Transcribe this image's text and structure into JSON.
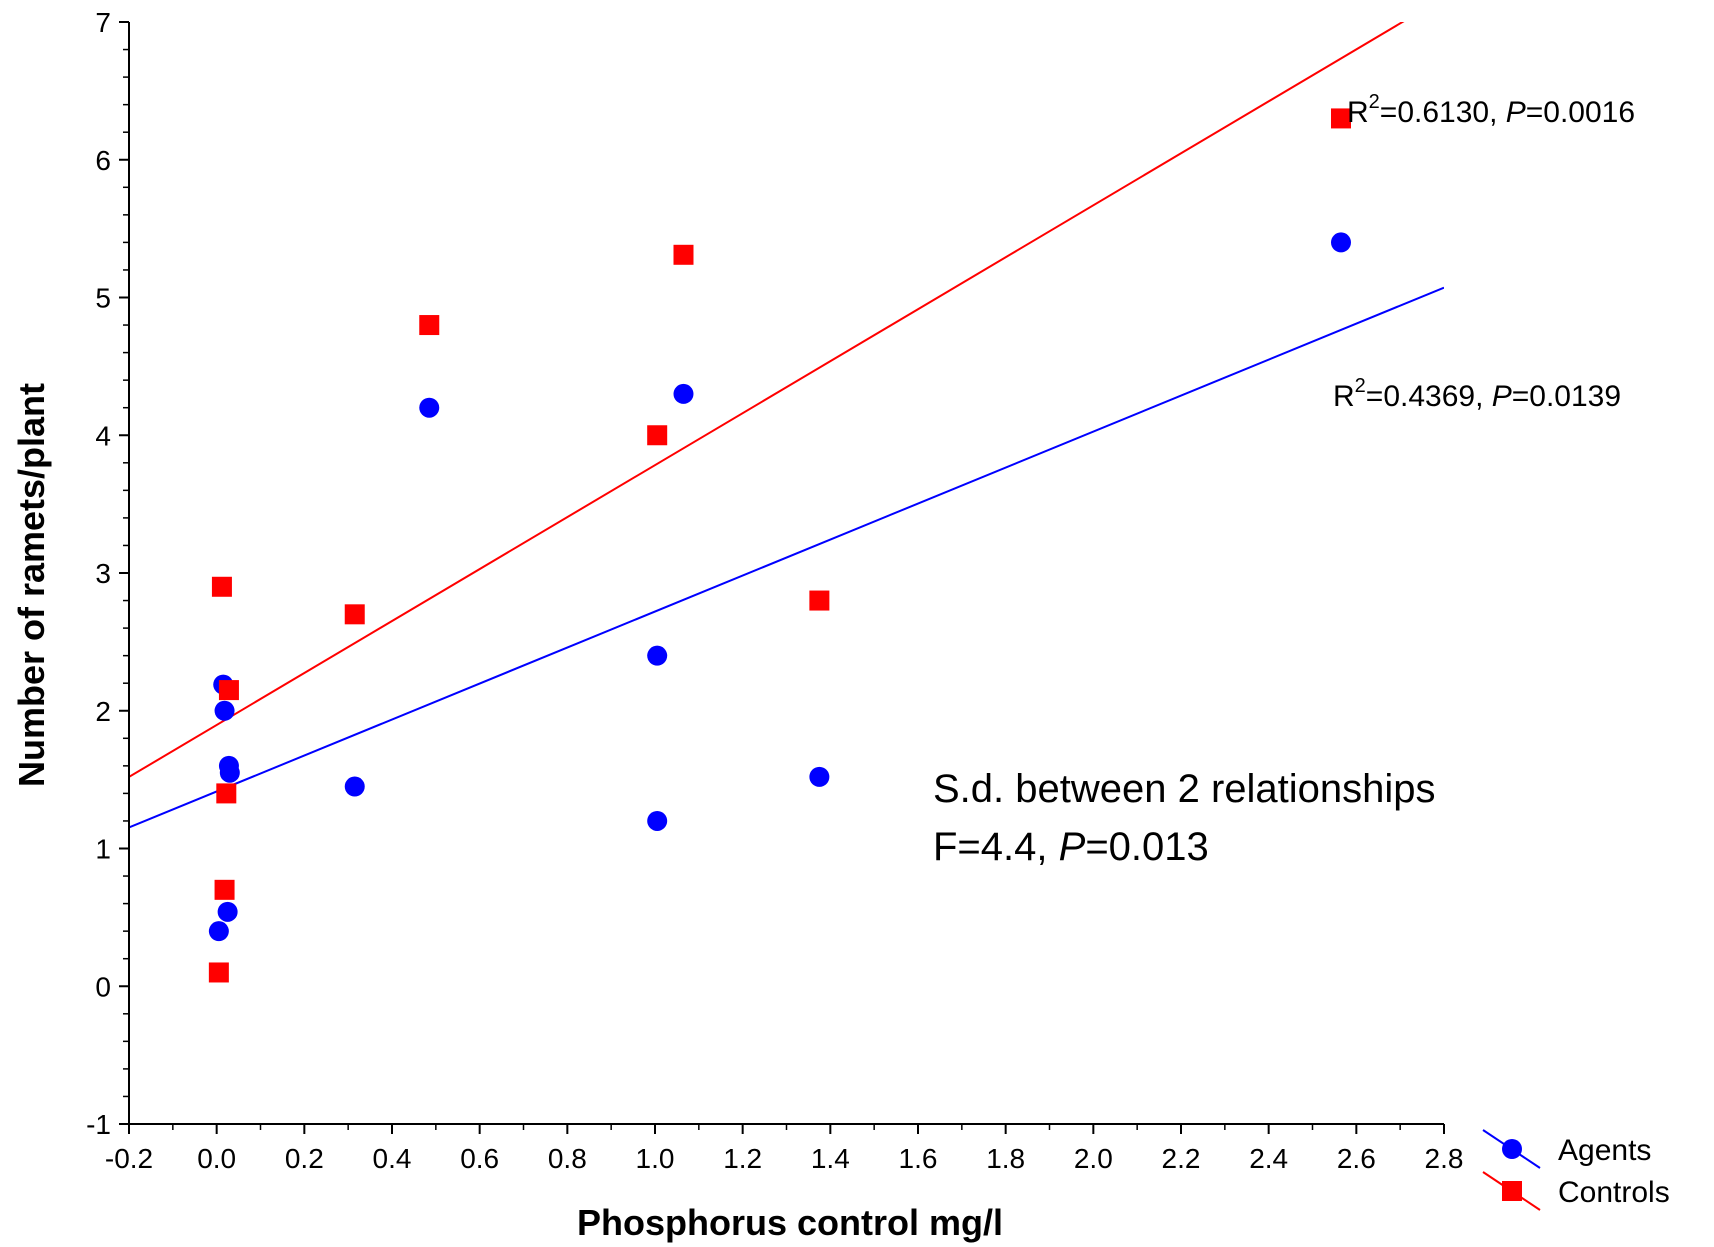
{
  "chart_data": {
    "type": "scatter",
    "xlabel": "Phosphorus control mg/l",
    "ylabel": "Number of ramets/plant",
    "xlim": [
      -0.2,
      2.8
    ],
    "ylim": [
      -1,
      7
    ],
    "x_ticks": [
      "-0.2",
      "0.0",
      "0.2",
      "0.4",
      "0.6",
      "0.8",
      "1.0",
      "1.2",
      "1.4",
      "1.6",
      "1.8",
      "2.0",
      "2.2",
      "2.4",
      "2.6",
      "2.8"
    ],
    "y_ticks": [
      "-1",
      "0",
      "1",
      "2",
      "3",
      "4",
      "5",
      "6",
      "7"
    ],
    "grid": false,
    "legend_position": "bottom-right",
    "series": [
      {
        "name": "Agents",
        "marker": "circle",
        "color": "#0000ff",
        "points": [
          [
            0.005,
            0.4
          ],
          [
            0.015,
            2.19
          ],
          [
            0.018,
            2.0
          ],
          [
            0.025,
            0.54
          ],
          [
            0.028,
            1.6
          ],
          [
            0.03,
            1.55
          ],
          [
            0.315,
            1.45
          ],
          [
            0.485,
            4.2
          ],
          [
            1.005,
            2.4
          ],
          [
            1.005,
            1.2
          ],
          [
            1.065,
            4.3
          ],
          [
            1.375,
            1.52
          ],
          [
            2.565,
            5.4
          ]
        ],
        "fit": {
          "slope": 1.3064,
          "intercept": 1.4138
        },
        "annotation": {
          "r2_label": "R",
          "r2_sup": "2",
          "r2_value": "=0.4369, ",
          "p_label": "P",
          "p_value": "=0.0139"
        }
      },
      {
        "name": "Controls",
        "marker": "square",
        "color": "#ff0000",
        "points": [
          [
            0.005,
            0.1
          ],
          [
            0.012,
            2.9
          ],
          [
            0.018,
            0.7
          ],
          [
            0.022,
            1.4
          ],
          [
            0.028,
            2.15
          ],
          [
            0.315,
            2.7
          ],
          [
            0.485,
            4.8
          ],
          [
            1.005,
            4.0
          ],
          [
            1.065,
            5.31
          ],
          [
            1.375,
            2.8
          ],
          [
            2.565,
            6.3
          ]
        ],
        "fit": {
          "slope": 1.8864,
          "intercept": 1.8967
        },
        "annotation": {
          "r2_label": "R",
          "r2_sup": "2",
          "r2_value": "=0.6130, ",
          "p_label": "P",
          "p_value": "=0.0016"
        }
      }
    ],
    "note": {
      "line1": "S.d. between 2 relationships",
      "line2_prefix": "F=4.4, ",
      "line2_p": "P",
      "line2_value": "=0.013"
    }
  }
}
